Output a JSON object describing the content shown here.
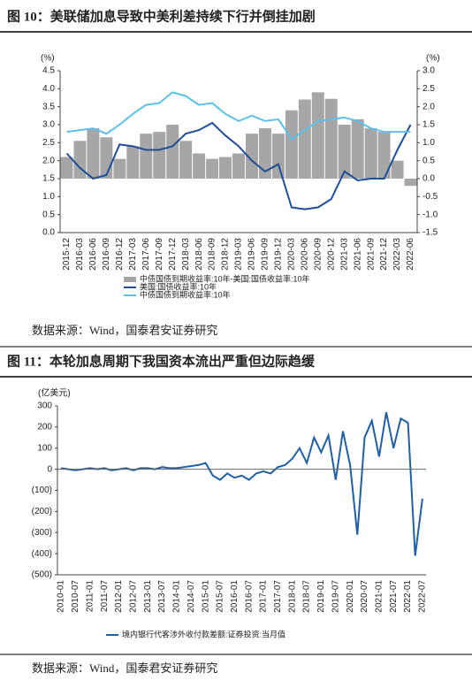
{
  "chart_data": [
    {
      "type": "combo",
      "title": "图 10：美联储加息导致中美利差持续下行并倒挂加剧",
      "y_label": "(%)",
      "y2_label": "(%)",
      "categories": [
        "2015-12",
        "2016-03",
        "2016-06",
        "2016-09",
        "2016-12",
        "2017-03",
        "2017-06",
        "2017-09",
        "2017-12",
        "2018-03",
        "2018-06",
        "2018-09",
        "2018-12",
        "2019-03",
        "2019-06",
        "2019-09",
        "2019-12",
        "2020-03",
        "2020-06",
        "2020-09",
        "2020-12",
        "2021-03",
        "2021-06",
        "2021-09",
        "2021-12",
        "2022-03",
        "2022-06"
      ],
      "ylim": [
        0,
        4.5
      ],
      "yticks": [
        {
          "value": 0,
          "label": "0.0"
        },
        0.5,
        {
          "value": 1,
          "label": "1.0"
        },
        1.5,
        {
          "value": 2,
          "label": "2.0"
        },
        2.5,
        {
          "value": 3,
          "label": "3.0"
        },
        3.5,
        {
          "value": 4,
          "label": "4.0"
        },
        4.5
      ],
      "y2lim": [
        -1.5,
        3
      ],
      "y2ticks": [
        {
          "value": 3,
          "label": "3.0"
        },
        2.5,
        {
          "value": 2,
          "label": "2.0"
        },
        1.5,
        {
          "value": 1,
          "label": "1.0"
        },
        0.5,
        {
          "value": 0,
          "label": "0.0"
        },
        -0.5,
        {
          "value": -1,
          "label": "-1.0"
        },
        -1.5
      ],
      "series": [
        {
          "name": "中债国债到期收益率:10年-美国:国债收益率:10年",
          "type": "bar",
          "axis": "y2",
          "color": "#a6a6a6",
          "values": [
            0.6,
            1.05,
            1.4,
            1.15,
            0.55,
            0.9,
            1.25,
            1.3,
            1.5,
            1.05,
            0.7,
            0.55,
            0.6,
            0.7,
            1.25,
            1.4,
            1.25,
            1.9,
            2.2,
            2.4,
            2.22,
            1.5,
            1.65,
            1.4,
            1.3,
            0.5,
            -0.2
          ]
        },
        {
          "name": "美国:国债收益率:10年",
          "type": "line",
          "color": "#1f4e9a",
          "values": [
            2.2,
            1.8,
            1.5,
            1.6,
            2.45,
            2.4,
            2.3,
            2.3,
            2.4,
            2.75,
            2.85,
            3.05,
            2.7,
            2.4,
            2.0,
            1.7,
            1.9,
            0.7,
            0.65,
            0.7,
            0.93,
            1.7,
            1.45,
            1.5,
            1.5,
            2.3,
            3.0
          ]
        },
        {
          "name": "中债国债到期收益率:10年",
          "type": "line",
          "color": "#5bc0eb",
          "values": [
            2.8,
            2.85,
            2.9,
            2.75,
            3.0,
            3.3,
            3.55,
            3.6,
            3.9,
            3.8,
            3.55,
            3.6,
            3.3,
            3.1,
            3.25,
            3.1,
            3.15,
            2.6,
            2.85,
            3.1,
            3.15,
            3.2,
            3.1,
            2.9,
            2.8,
            2.8,
            2.8
          ]
        }
      ],
      "source": "数据来源：Wind，国泰君安证券研究"
    },
    {
      "type": "line",
      "title": "图 11：本轮加息周期下我国资本流出严重但边际趋缓",
      "y_label": "(亿美元)",
      "categories": [
        "2010-01",
        null,
        "2010-07",
        null,
        "2011-01",
        null,
        "2011-07",
        null,
        "2012-01",
        null,
        "2012-07",
        null,
        "2013-01",
        null,
        "2013-07",
        null,
        "2014-01",
        null,
        "2014-07",
        null,
        "2015-01",
        null,
        "2015-07",
        null,
        "2016-01",
        null,
        "2016-07",
        null,
        "2017-01",
        null,
        "2017-07",
        null,
        "2018-01",
        null,
        "2018-07",
        null,
        "2019-01",
        null,
        "2019-07",
        null,
        "2020-01",
        null,
        "2020-07",
        null,
        "2021-01",
        null,
        "2021-07",
        null,
        "2022-01",
        null,
        "2022-07"
      ],
      "ylim": [
        -500,
        300
      ],
      "yticks": [
        300,
        200,
        100,
        0,
        {
          "value": -100,
          "label": "(100)"
        },
        {
          "value": -200,
          "label": "(200)"
        },
        {
          "value": -300,
          "label": "(300)"
        },
        {
          "value": -400,
          "label": "(400)"
        },
        {
          "value": -500,
          "label": "(500)"
        }
      ],
      "negative_tick_color": "#e00000",
      "series": [
        {
          "name": "境内银行代客涉外收付款差额:证券投资:当月值",
          "color": "#1f5fa8",
          "values": [
            5,
            0,
            -5,
            0,
            5,
            0,
            5,
            -5,
            0,
            5,
            -5,
            5,
            5,
            0,
            10,
            5,
            5,
            10,
            15,
            20,
            30,
            -30,
            -50,
            -20,
            -40,
            -30,
            -50,
            -20,
            -10,
            -20,
            10,
            20,
            50,
            100,
            30,
            150,
            80,
            160,
            -50,
            180,
            20,
            -310,
            150,
            230,
            60,
            270,
            100,
            240,
            220,
            -410,
            -140
          ]
        }
      ],
      "source": "数据来源：Wind，国泰君安证券研究"
    }
  ]
}
